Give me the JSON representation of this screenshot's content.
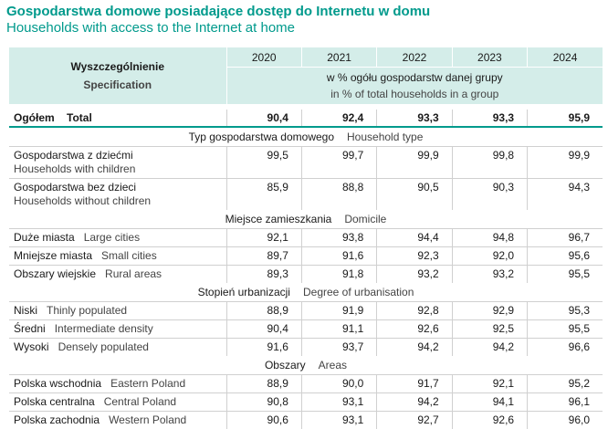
{
  "title_pl": "Gospodarstwa domowe posiadające dostęp do Internetu w domu",
  "title_en": "Households with access to the Internet at home",
  "header": {
    "spec_pl": "Wyszczególnienie",
    "spec_en": "Specification",
    "years": [
      "2020",
      "2021",
      "2022",
      "2023",
      "2024"
    ],
    "unit_pl": "w % ogółu gospodarstw danej grupy",
    "unit_en": "in % of total households in a group"
  },
  "total": {
    "pl": "Ogółem",
    "en": "Total",
    "values": [
      "90,4",
      "92,4",
      "93,3",
      "93,3",
      "95,9"
    ]
  },
  "sections": [
    {
      "pl": "Typ gospodarstwa domowego",
      "en": "Household type",
      "layout": "stacked",
      "rows": [
        {
          "pl": "Gospodarstwa z dziećmi",
          "en": "Households with children",
          "values": [
            "99,5",
            "99,7",
            "99,9",
            "99,8",
            "99,9"
          ]
        },
        {
          "pl": "Gospodarstwa bez dzieci",
          "en": "Households without children",
          "values": [
            "85,9",
            "88,8",
            "90,5",
            "90,3",
            "94,3"
          ]
        }
      ]
    },
    {
      "pl": "Miejsce zamieszkania",
      "en": "Domicile",
      "layout": "inline",
      "rows": [
        {
          "pl": "Duże miasta",
          "en": "Large cities",
          "values": [
            "92,1",
            "93,8",
            "94,4",
            "94,8",
            "96,7"
          ]
        },
        {
          "pl": "Mniejsze miasta",
          "en": "Small cities",
          "values": [
            "89,7",
            "91,6",
            "92,3",
            "92,0",
            "95,6"
          ]
        },
        {
          "pl": "Obszary wiejskie",
          "en": "Rural areas",
          "values": [
            "89,3",
            "91,8",
            "93,2",
            "93,2",
            "95,5"
          ]
        }
      ]
    },
    {
      "pl": "Stopień urbanizacji",
      "en": "Degree of urbanisation",
      "layout": "inline",
      "rows": [
        {
          "pl": "Niski",
          "en": "Thinly populated",
          "values": [
            "88,9",
            "91,9",
            "92,8",
            "92,9",
            "95,3"
          ]
        },
        {
          "pl": "Średni",
          "en": "Intermediate density",
          "values": [
            "90,4",
            "91,1",
            "92,6",
            "92,5",
            "95,5"
          ]
        },
        {
          "pl": "Wysoki",
          "en": "Densely populated",
          "values": [
            "91,6",
            "93,7",
            "94,2",
            "94,2",
            "96,6"
          ]
        }
      ]
    },
    {
      "pl": "Obszary",
      "en": "Areas",
      "layout": "inline",
      "rows": [
        {
          "pl": "Polska wschodnia",
          "en": "Eastern Poland",
          "values": [
            "88,9",
            "90,0",
            "91,7",
            "92,1",
            "95,2"
          ]
        },
        {
          "pl": "Polska centralna",
          "en": "Central Poland",
          "values": [
            "90,8",
            "93,1",
            "94,2",
            "94,1",
            "96,1"
          ]
        },
        {
          "pl": "Polska zachodnia",
          "en": "Western Poland",
          "values": [
            "90,6",
            "93,1",
            "92,7",
            "92,6",
            "96,0"
          ]
        }
      ]
    }
  ],
  "colors": {
    "accent": "#009a8c",
    "header_bg": "#d4ede9"
  }
}
